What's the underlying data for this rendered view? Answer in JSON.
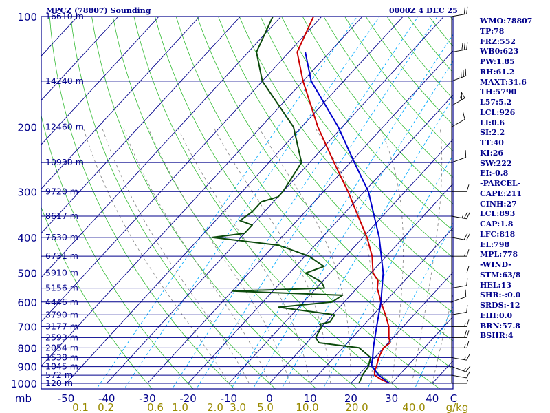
{
  "header": {
    "title": "MPCZ (78807) Sounding",
    "time": "0000Z  4 DEC 25"
  },
  "colors": {
    "frame": "#00008b",
    "isobar": "#00008b",
    "isotherm": "#00008b",
    "dry_adiabat": "#33bb33",
    "mixing_ratio": "#00aaff",
    "moist_adiabat": "#808080",
    "temperature": "#cc0000",
    "dewpoint": "#0b4a0b",
    "parcel": "#0000cc",
    "wind": "#000000",
    "mixing_label": "#998a00"
  },
  "indices": [
    "WMO:78807",
    "TP:78",
    "FRZ:552",
    "WB0:623",
    "PW:1.85",
    "RH:61.2",
    "MAXT:31.6",
    "TH:5790",
    "L57:5.2",
    "LCL:926",
    "LI:0.6",
    "SI:2.2",
    "TT:40",
    "KI:26",
    "SW:222",
    "EI:-0.8",
    "-PARCEL-",
    "CAPE:211",
    "CINH:27",
    "LCL:893",
    "CAP:1.8",
    "LFC:818",
    "EL:798",
    "MPL:778",
    "-WIND-",
    "STM:63/8",
    "HEL:13",
    "SHR:-:0.0",
    "SRDS:-12",
    "EHI:0.0",
    "BRN:57.8",
    "BSHR:4"
  ],
  "chart_data": {
    "type": "skew-t sounding",
    "title": "MPCZ (78807) Sounding",
    "valid_time": "0000Z  4 DEC 25",
    "pressure_unit": "mb",
    "temperature_unit": "C",
    "mixing_ratio_unit": "g/kg",
    "pressure_range": [
      1000,
      100
    ],
    "temperature_range": [
      -50,
      50
    ],
    "pressure_labels": [
      {
        "p": 100,
        "text": "100"
      },
      {
        "p": 200,
        "text": "200"
      },
      {
        "p": 300,
        "text": "300"
      },
      {
        "p": 400,
        "text": "400"
      },
      {
        "p": 500,
        "text": "500"
      },
      {
        "p": 600,
        "text": "600"
      },
      {
        "p": 700,
        "text": "700"
      },
      {
        "p": 800,
        "text": "800"
      },
      {
        "p": 900,
        "text": "900"
      },
      {
        "p": 1000,
        "text": "1000"
      }
    ],
    "heights": [
      {
        "p": 100,
        "text": "16610 m"
      },
      {
        "p": 150,
        "text": "14240 m"
      },
      {
        "p": 200,
        "text": "12460 m"
      },
      {
        "p": 250,
        "text": "10930 m"
      },
      {
        "p": 300,
        "text": "9720 m"
      },
      {
        "p": 350,
        "text": "8617 m"
      },
      {
        "p": 400,
        "text": "7630 m"
      },
      {
        "p": 450,
        "text": "6731 m"
      },
      {
        "p": 500,
        "text": "5910 m"
      },
      {
        "p": 550,
        "text": "5156 m"
      },
      {
        "p": 600,
        "text": "4446 m"
      },
      {
        "p": 650,
        "text": "3790 m"
      },
      {
        "p": 700,
        "text": "3177 m"
      },
      {
        "p": 750,
        "text": "2593 m"
      },
      {
        "p": 800,
        "text": "2054 m"
      },
      {
        "p": 850,
        "text": "1538 m"
      },
      {
        "p": 900,
        "text": "1045 m"
      },
      {
        "p": 950,
        "text": "572 m"
      },
      {
        "p": 1000,
        "text": "120 m"
      }
    ],
    "x_tick_labels": [
      "mb",
      "-50",
      "-40",
      "-30",
      "-20",
      "-10",
      "0",
      "10",
      "20",
      "30",
      "40",
      "C"
    ],
    "mixing_ratio_labels": [
      "0.1",
      "0.2",
      "0.6",
      "1.0",
      "2.0",
      "3.0",
      "5.0",
      "10.0",
      "20.0",
      "40.0",
      "g/kg"
    ],
    "mixing_ratio_ticks": [
      {
        "w": 0.1,
        "text": "0.1"
      },
      {
        "w": 0.2,
        "text": "0.2"
      },
      {
        "w": 0.6,
        "text": "0.6"
      },
      {
        "w": 1.0,
        "text": "1.0"
      },
      {
        "w": 2.0,
        "text": "2.0"
      },
      {
        "w": 3.0,
        "text": "3.0"
      },
      {
        "w": 5.0,
        "text": "5.0"
      },
      {
        "w": 10.0,
        "text": "10.0"
      },
      {
        "w": 20.0,
        "text": "20.0"
      },
      {
        "w": 40.0,
        "text": "40.0"
      }
    ],
    "temperature": [
      {
        "p": 1000,
        "t": 29.5
      },
      {
        "p": 975,
        "t": 26.5
      },
      {
        "p": 950,
        "t": 24.0
      },
      {
        "p": 925,
        "t": 23.0
      },
      {
        "p": 900,
        "t": 22.5
      },
      {
        "p": 850,
        "t": 21.0
      },
      {
        "p": 800,
        "t": 20.0
      },
      {
        "p": 775,
        "t": 20.5
      },
      {
        "p": 750,
        "t": 19.0
      },
      {
        "p": 700,
        "t": 16.5
      },
      {
        "p": 650,
        "t": 13.0
      },
      {
        "p": 600,
        "t": 9.0
      },
      {
        "p": 550,
        "t": 5.0
      },
      {
        "p": 525,
        "t": 3.5
      },
      {
        "p": 500,
        "t": 0.5
      },
      {
        "p": 450,
        "t": -3.5
      },
      {
        "p": 400,
        "t": -9.0
      },
      {
        "p": 350,
        "t": -16.0
      },
      {
        "p": 300,
        "t": -24.0
      },
      {
        "p": 250,
        "t": -34.0
      },
      {
        "p": 200,
        "t": -46.0
      },
      {
        "p": 150,
        "t": -60.0
      },
      {
        "p": 125,
        "t": -68.0
      },
      {
        "p": 100,
        "t": -72.0
      },
      {
        "p": 90,
        "t": -70.0
      }
    ],
    "dewpoint": [
      {
        "p": 1000,
        "t": 22.0
      },
      {
        "p": 950,
        "t": 21.0
      },
      {
        "p": 900,
        "t": 20.5
      },
      {
        "p": 850,
        "t": 19.0
      },
      {
        "p": 800,
        "t": 14.0
      },
      {
        "p": 775,
        "t": 3.0
      },
      {
        "p": 750,
        "t": 1.0
      },
      {
        "p": 700,
        "t": 0.0
      },
      {
        "p": 690,
        "t": -1.0
      },
      {
        "p": 680,
        "t": 1.0
      },
      {
        "p": 650,
        "t": 0.5
      },
      {
        "p": 620,
        "t": -15.0
      },
      {
        "p": 600,
        "t": -3.0
      },
      {
        "p": 575,
        "t": -2.0
      },
      {
        "p": 560,
        "t": -30.0
      },
      {
        "p": 550,
        "t": -8.0
      },
      {
        "p": 530,
        "t": -10.0
      },
      {
        "p": 500,
        "t": -16.0
      },
      {
        "p": 480,
        "t": -13.0
      },
      {
        "p": 450,
        "t": -19.0
      },
      {
        "p": 420,
        "t": -29.0
      },
      {
        "p": 400,
        "t": -47.0
      },
      {
        "p": 390,
        "t": -40.0
      },
      {
        "p": 370,
        "t": -40.0
      },
      {
        "p": 360,
        "t": -44.0
      },
      {
        "p": 340,
        "t": -43.0
      },
      {
        "p": 320,
        "t": -43.0
      },
      {
        "p": 310,
        "t": -40.0
      },
      {
        "p": 300,
        "t": -40.0
      },
      {
        "p": 250,
        "t": -42.0
      },
      {
        "p": 200,
        "t": -52.0
      },
      {
        "p": 150,
        "t": -70.0
      },
      {
        "p": 125,
        "t": -78.0
      },
      {
        "p": 100,
        "t": -82.0
      }
    ],
    "parcel": [
      {
        "p": 1000,
        "t": 29.5
      },
      {
        "p": 950,
        "t": 25.0
      },
      {
        "p": 900,
        "t": 21.5
      },
      {
        "p": 893,
        "t": 21.0
      },
      {
        "p": 850,
        "t": 19.5
      },
      {
        "p": 800,
        "t": 17.5
      },
      {
        "p": 700,
        "t": 13.5
      },
      {
        "p": 600,
        "t": 9.0
      },
      {
        "p": 500,
        "t": 3.0
      },
      {
        "p": 400,
        "t": -6.0
      },
      {
        "p": 300,
        "t": -19.0
      },
      {
        "p": 250,
        "t": -29.0
      },
      {
        "p": 200,
        "t": -41.0
      },
      {
        "p": 150,
        "t": -58.0
      },
      {
        "p": 125,
        "t": -66.0
      }
    ],
    "winds": [
      {
        "p": 1000,
        "dir": 90,
        "spd": 5
      },
      {
        "p": 950,
        "dir": 100,
        "spd": 10
      },
      {
        "p": 900,
        "dir": 110,
        "spd": 15
      },
      {
        "p": 850,
        "dir": 100,
        "spd": 15
      },
      {
        "p": 800,
        "dir": 90,
        "spd": 15
      },
      {
        "p": 750,
        "dir": 90,
        "spd": 20
      },
      {
        "p": 700,
        "dir": 90,
        "spd": 15
      },
      {
        "p": 650,
        "dir": 80,
        "spd": 10
      },
      {
        "p": 600,
        "dir": 70,
        "spd": 10
      },
      {
        "p": 550,
        "dir": 80,
        "spd": 10
      },
      {
        "p": 500,
        "dir": 90,
        "spd": 10
      },
      {
        "p": 450,
        "dir": 90,
        "spd": 15
      },
      {
        "p": 400,
        "dir": 100,
        "spd": 20
      },
      {
        "p": 350,
        "dir": 100,
        "spd": 25
      },
      {
        "p": 300,
        "dir": 90,
        "spd": 10
      },
      {
        "p": 250,
        "dir": 70,
        "spd": 10
      },
      {
        "p": 200,
        "dir": 60,
        "spd": 10
      },
      {
        "p": 175,
        "dir": 60,
        "spd": 55
      },
      {
        "p": 150,
        "dir": 70,
        "spd": 35
      },
      {
        "p": 125,
        "dir": 80,
        "spd": 30
      },
      {
        "p": 100,
        "dir": 80,
        "spd": 20
      }
    ]
  }
}
